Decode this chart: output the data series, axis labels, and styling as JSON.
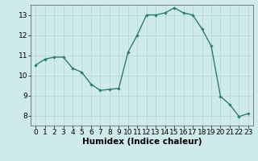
{
  "x": [
    0,
    1,
    2,
    3,
    4,
    5,
    6,
    7,
    8,
    9,
    10,
    11,
    12,
    13,
    14,
    15,
    16,
    17,
    18,
    19,
    20,
    21,
    22,
    23
  ],
  "y": [
    10.5,
    10.8,
    10.9,
    10.9,
    10.35,
    10.15,
    9.55,
    9.25,
    9.3,
    9.35,
    11.15,
    12.0,
    13.0,
    13.0,
    13.1,
    13.35,
    13.1,
    13.0,
    12.3,
    11.45,
    8.95,
    8.55,
    7.95,
    8.1
  ],
  "line_color": "#2e7d6e",
  "marker": "D",
  "marker_size": 2.2,
  "background_color": "#ceeaea",
  "grid_color": "#b8d8d8",
  "xlabel": "Humidex (Indice chaleur)",
  "xlabel_fontsize": 7.5,
  "xlim": [
    -0.5,
    23.5
  ],
  "ylim": [
    7.5,
    13.5
  ],
  "yticks": [
    8,
    9,
    10,
    11,
    12,
    13
  ],
  "xticks": [
    0,
    1,
    2,
    3,
    4,
    5,
    6,
    7,
    8,
    9,
    10,
    11,
    12,
    13,
    14,
    15,
    16,
    17,
    18,
    19,
    20,
    21,
    22,
    23
  ],
  "tick_fontsize": 6.5,
  "line_width": 1.0
}
